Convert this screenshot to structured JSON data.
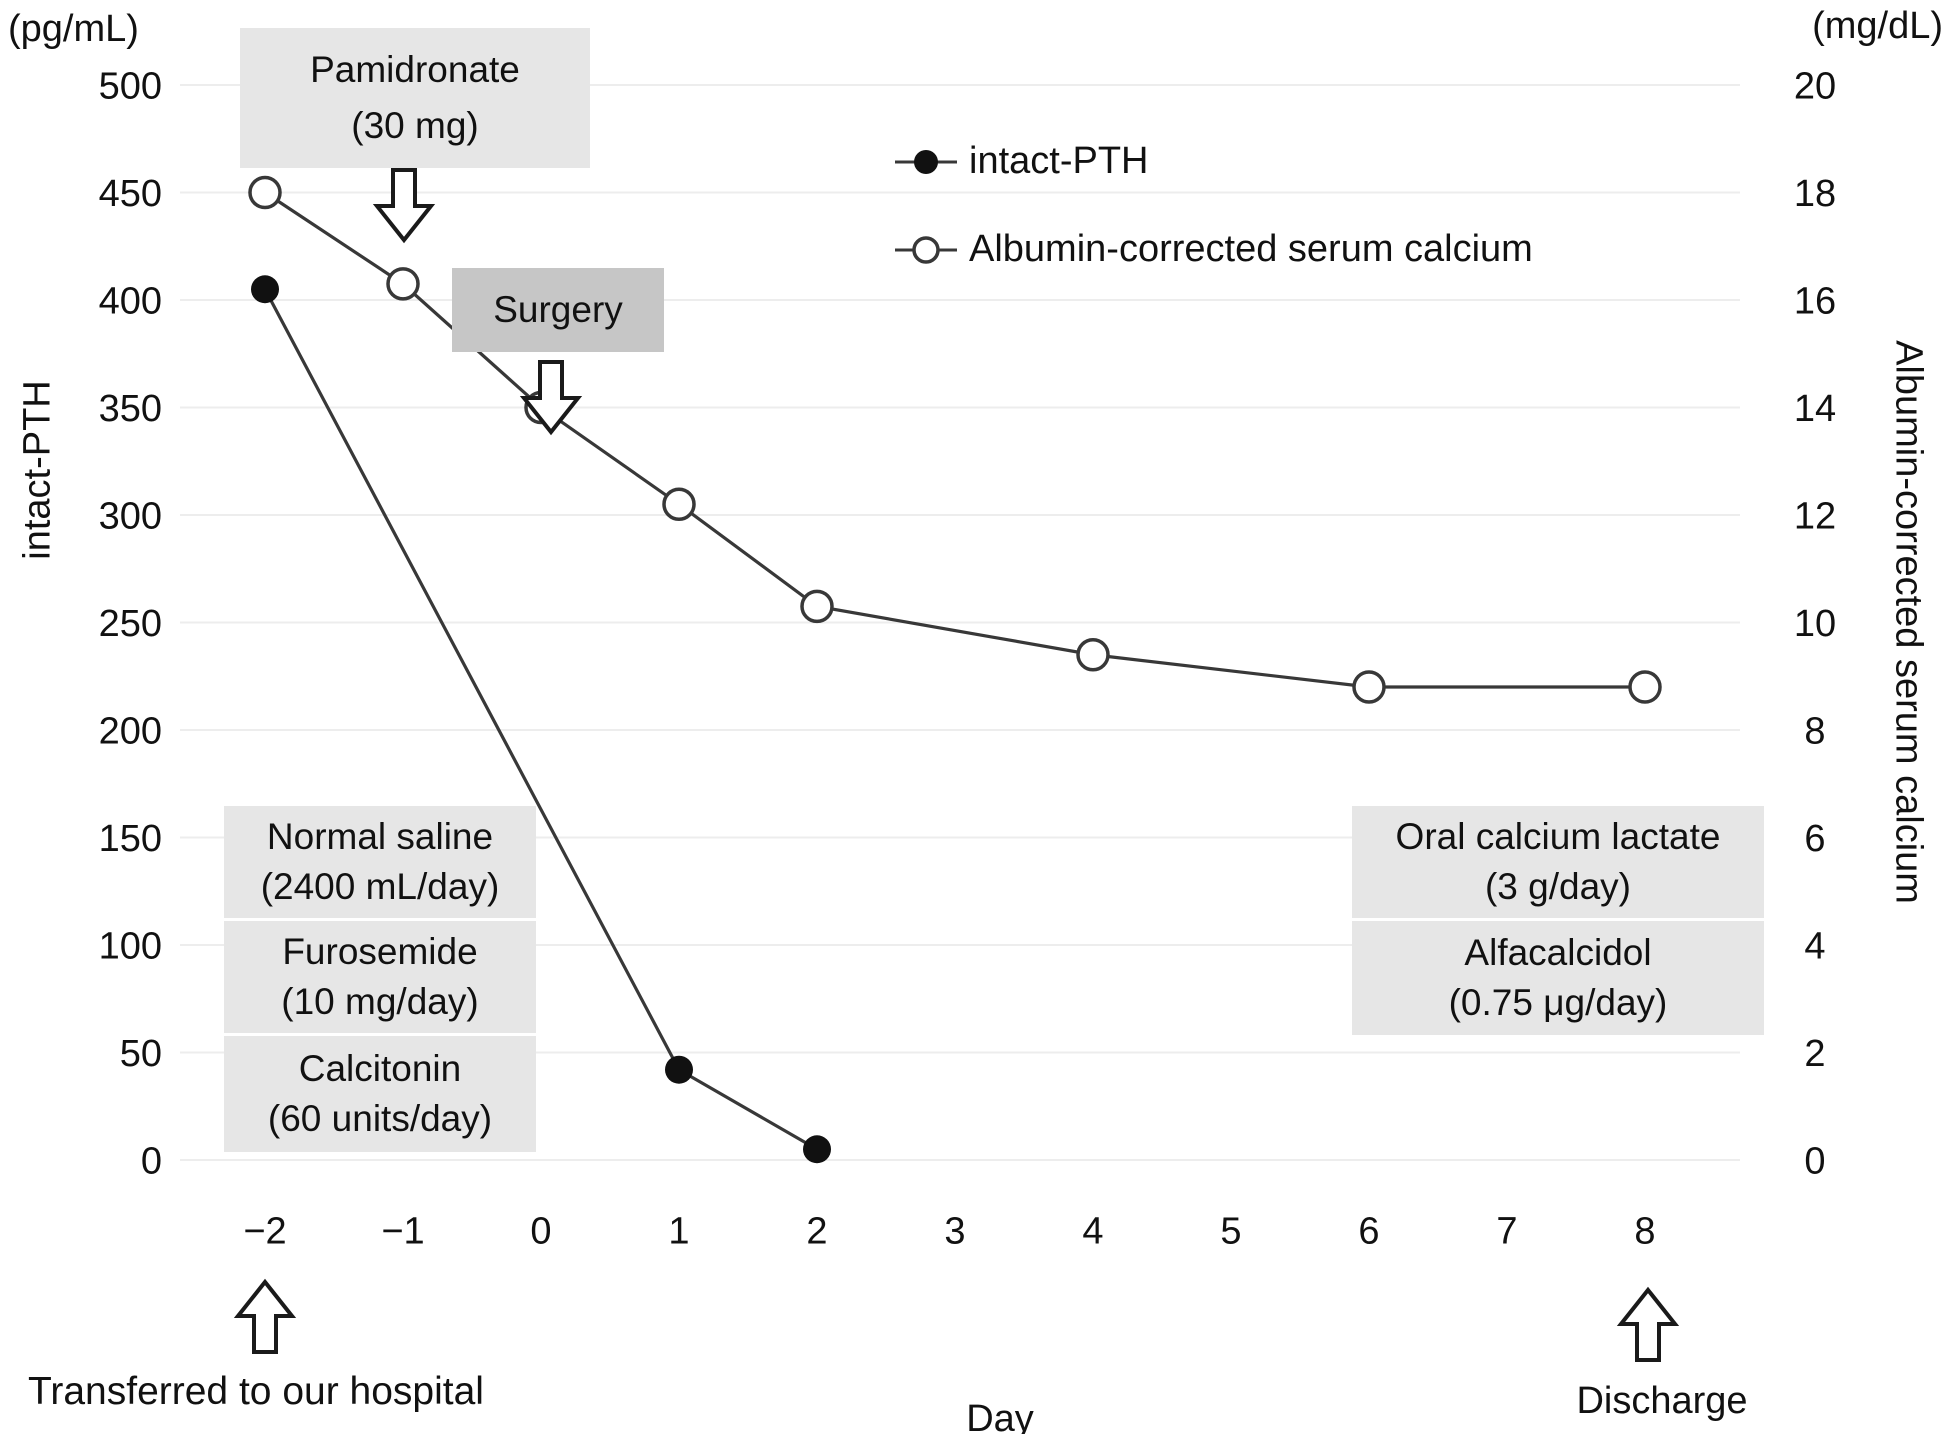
{
  "legend": [
    {
      "label": "intact-PTH",
      "marker": "filled-circle"
    },
    {
      "label": "Albumin-corrected serum calcium",
      "marker": "open-circle"
    }
  ],
  "annotations": {
    "pamidronate": {
      "line1": "Pamidronate",
      "line2": "(30 mg)",
      "anchor_day": -1
    },
    "surgery": {
      "label": "Surgery",
      "anchor_day": 0
    },
    "normal_saline": {
      "line1": "Normal saline",
      "line2": "(2400 mL/day)"
    },
    "furosemide": {
      "line1": "Furosemide",
      "line2": "(10 mg/day)"
    },
    "calcitonin": {
      "line1": "Calcitonin",
      "line2": "(60 units/day)"
    },
    "oral_calcium_lactate": {
      "line1": "Oral calcium lactate",
      "line2": "(3 g/day)"
    },
    "alfacalcidol": {
      "line1": "Alfacalcidol",
      "line2": "(0.75 μg/day)"
    },
    "transferred": "Transferred to our hospital",
    "discharge": "Discharge"
  },
  "chart_data": {
    "type": "line",
    "x_label": "Day",
    "x_ticks": [
      -2,
      -1,
      0,
      1,
      2,
      3,
      4,
      5,
      6,
      7,
      8
    ],
    "left_axis": {
      "unit": "(pg/mL)",
      "label": "intact-PTH",
      "min": 0,
      "max": 500,
      "tick_step": 50
    },
    "right_axis": {
      "unit": "(mg/dL)",
      "label": "Albumin-corrected serum calcium",
      "min": 0,
      "max": 20,
      "tick_step": 2
    },
    "grid": true,
    "legend_position": "top-center",
    "series": [
      {
        "name": "intact-PTH",
        "axis": "left",
        "marker": "filled-circle",
        "points": [
          {
            "day": -2,
            "value": 405
          },
          {
            "day": 1,
            "value": 42
          },
          {
            "day": 2,
            "value": 5
          }
        ]
      },
      {
        "name": "Albumin-corrected serum calcium",
        "axis": "right",
        "marker": "open-circle",
        "points": [
          {
            "day": -2,
            "value": 18.0
          },
          {
            "day": -1,
            "value": 16.3
          },
          {
            "day": 0,
            "value": 14.0
          },
          {
            "day": 1,
            "value": 12.2
          },
          {
            "day": 2,
            "value": 10.3
          },
          {
            "day": 4,
            "value": 9.4
          },
          {
            "day": 6,
            "value": 8.8
          },
          {
            "day": 8,
            "value": 8.8
          }
        ]
      }
    ]
  }
}
